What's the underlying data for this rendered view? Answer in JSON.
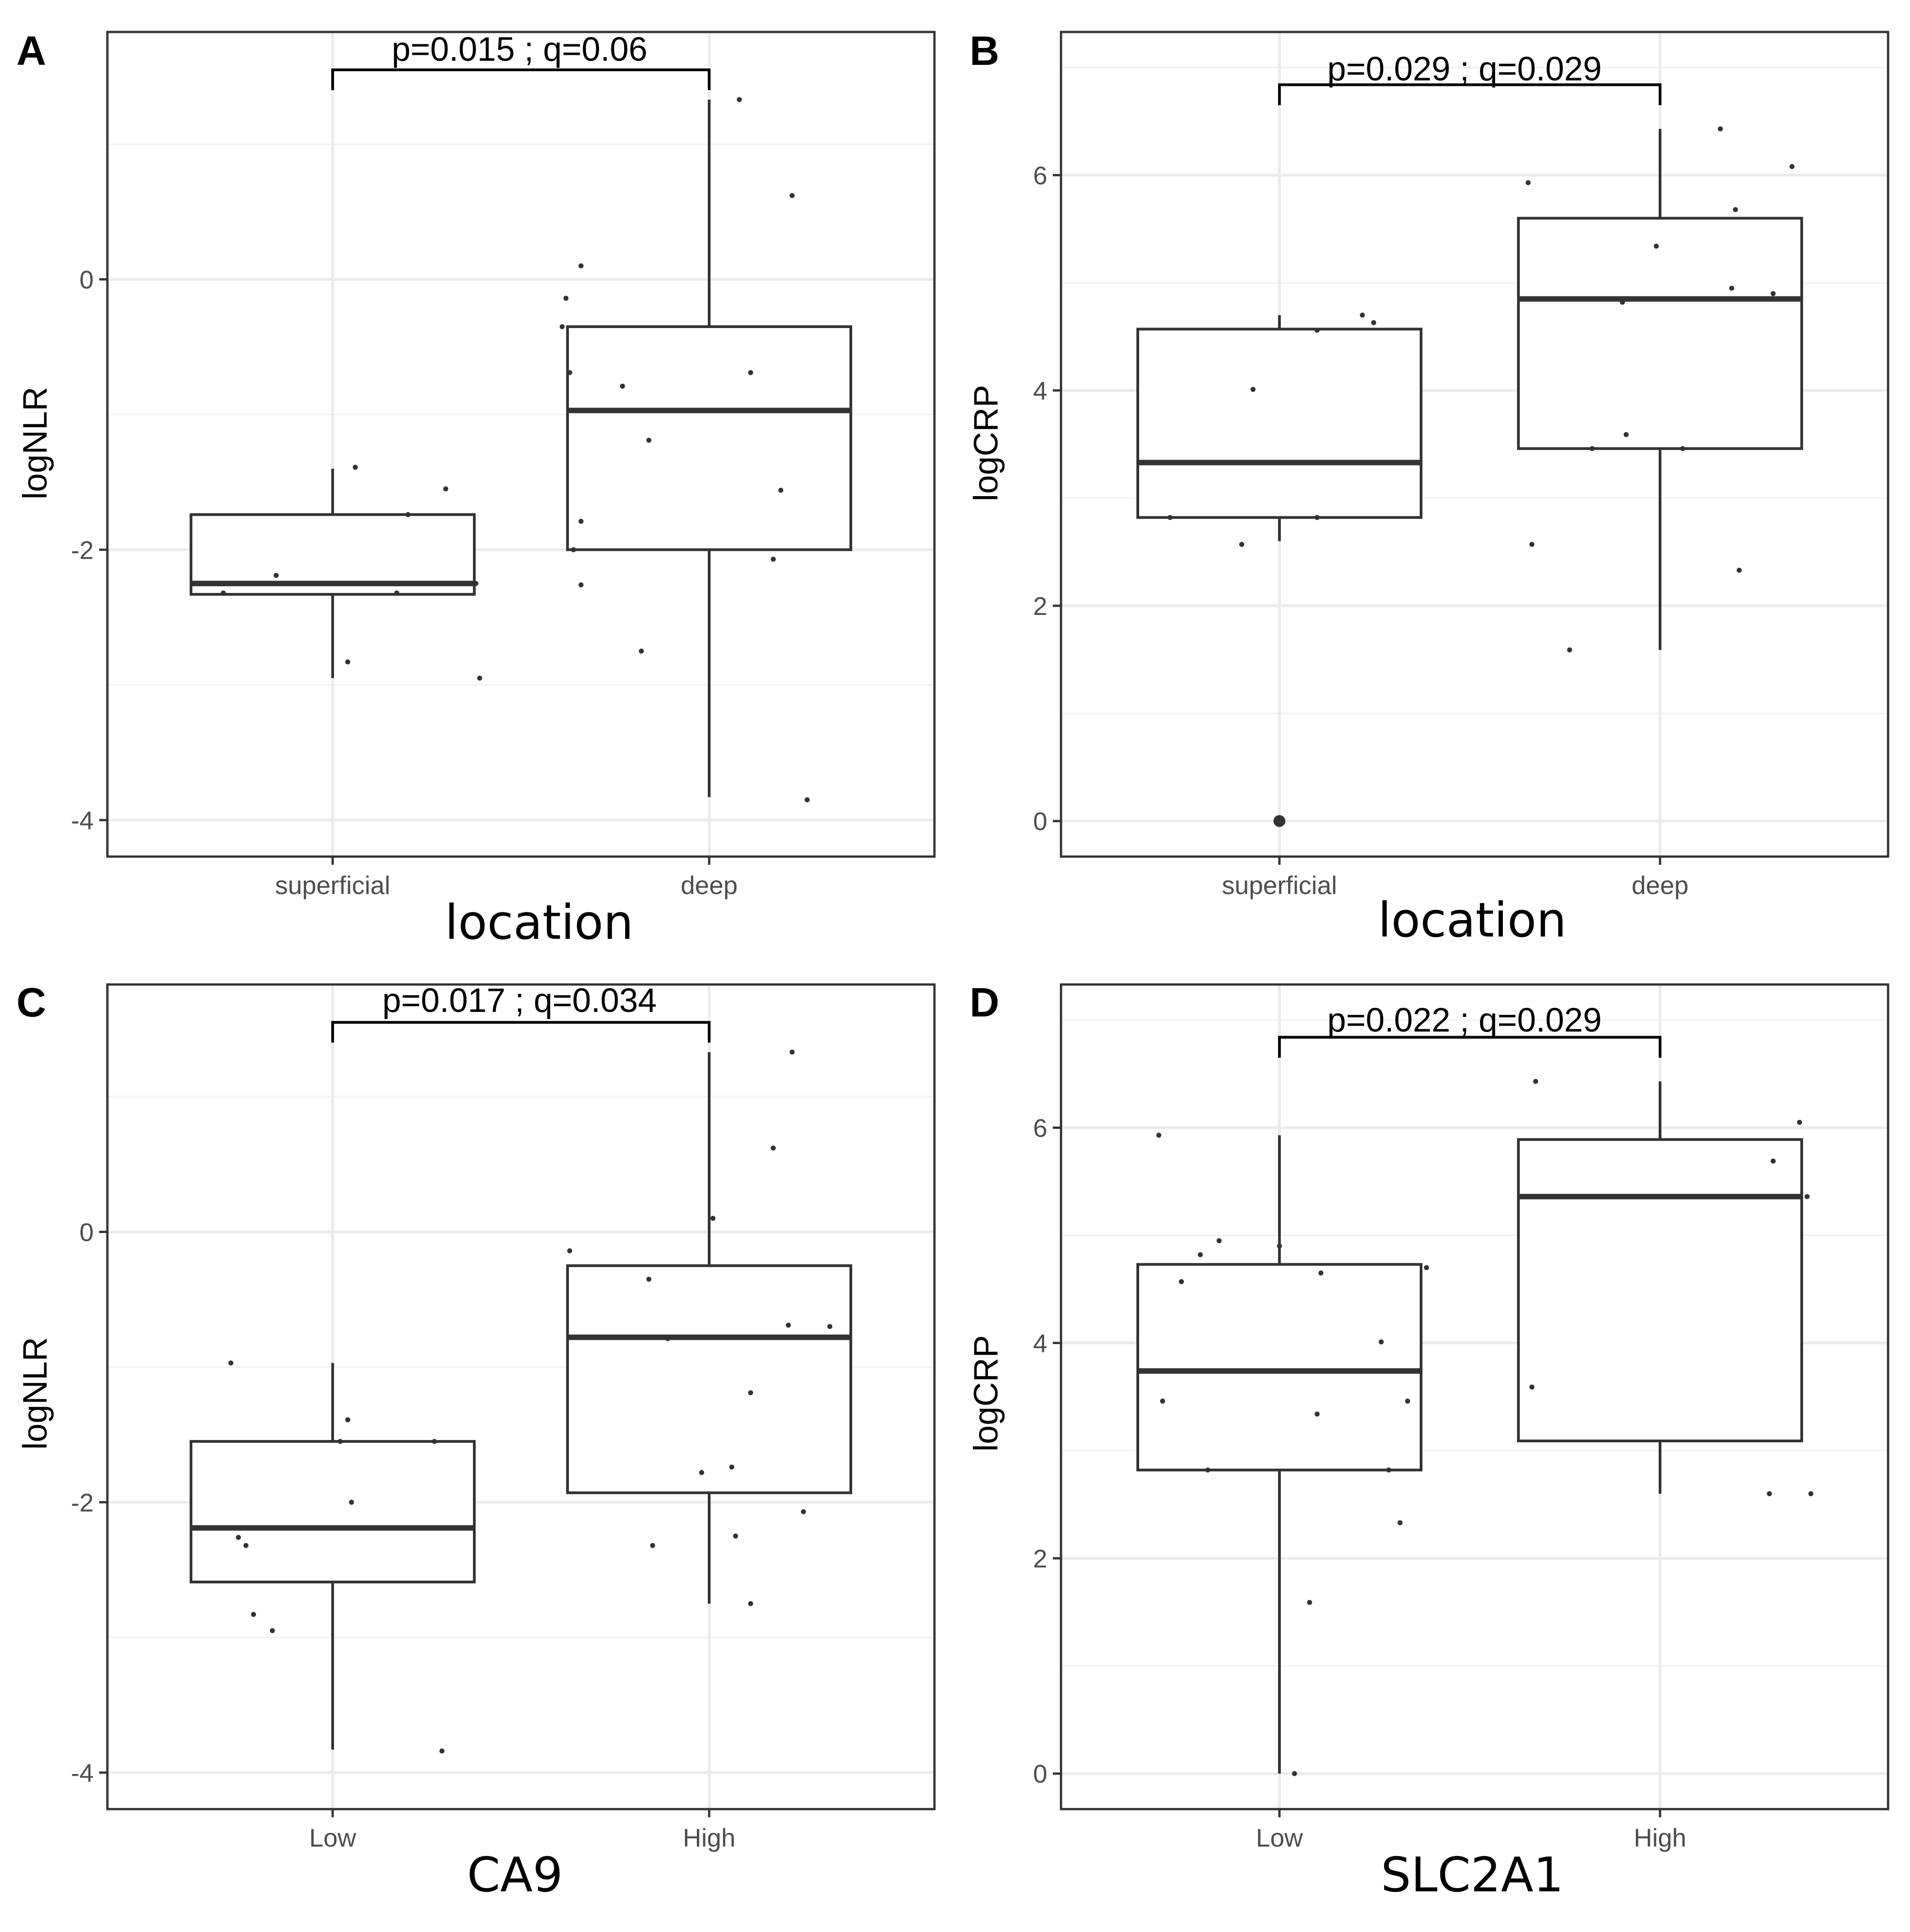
{
  "colors": {
    "box_stroke": "#333333",
    "median": "#333333",
    "point": "#333333",
    "grid_major": "#ebebeb",
    "grid_minor": "#f4f4f4",
    "panel_border": "#333333",
    "background": "#ffffff"
  },
  "chart_data": [
    {
      "id": "A",
      "panel_label": "A",
      "type": "box",
      "xlabel": "location",
      "ylabel": "logNLR",
      "categories": [
        "superficial",
        "deep"
      ],
      "ylim": [
        -4.27,
        1.83
      ],
      "yticks": [
        -4,
        -2,
        0
      ],
      "ytick_labels": [
        "-4",
        "-2",
        "0"
      ],
      "significance": {
        "label": "p=0.015 ; q=0.06",
        "y": 1.55,
        "tip": 1.4
      },
      "boxes": [
        {
          "q1": -2.33,
          "median": -2.25,
          "q3": -1.74,
          "whisker_low": -2.95,
          "whisker_high": -1.4
        },
        {
          "q1": -2.0,
          "median": -0.97,
          "q3": -0.35,
          "whisker_low": -3.83,
          "whisker_high": 1.33
        }
      ],
      "points": [
        {
          "c": 0,
          "dx": -0.29,
          "y": -2.32
        },
        {
          "c": 0,
          "dx": -0.15,
          "y": -2.19
        },
        {
          "c": 0,
          "dx": 0.04,
          "y": -2.83
        },
        {
          "c": 0,
          "dx": 0.06,
          "y": -1.39
        },
        {
          "c": 0,
          "dx": 0.17,
          "y": -2.32
        },
        {
          "c": 0,
          "dx": 0.2,
          "y": -1.74
        },
        {
          "c": 0,
          "dx": 0.3,
          "y": -1.55
        },
        {
          "c": 0,
          "dx": 0.38,
          "y": -2.25
        },
        {
          "c": 0,
          "dx": 0.39,
          "y": -2.95
        },
        {
          "c": 1,
          "dx": -0.39,
          "y": -0.35
        },
        {
          "c": 1,
          "dx": -0.38,
          "y": -0.14
        },
        {
          "c": 1,
          "dx": -0.37,
          "y": -0.69
        },
        {
          "c": 1,
          "dx": -0.36,
          "y": -2.0
        },
        {
          "c": 1,
          "dx": -0.34,
          "y": 0.1
        },
        {
          "c": 1,
          "dx": -0.34,
          "y": -1.79
        },
        {
          "c": 1,
          "dx": -0.34,
          "y": -2.26
        },
        {
          "c": 1,
          "dx": -0.23,
          "y": -0.79
        },
        {
          "c": 1,
          "dx": -0.18,
          "y": -2.75
        },
        {
          "c": 1,
          "dx": -0.16,
          "y": -1.19
        },
        {
          "c": 1,
          "dx": 0.08,
          "y": 1.33
        },
        {
          "c": 1,
          "dx": 0.11,
          "y": -0.69
        },
        {
          "c": 1,
          "dx": 0.17,
          "y": -2.07
        },
        {
          "c": 1,
          "dx": 0.19,
          "y": -1.56
        },
        {
          "c": 1,
          "dx": 0.22,
          "y": 0.62
        },
        {
          "c": 1,
          "dx": 0.26,
          "y": -3.85
        },
        {
          "c": 1,
          "dx": 0.28,
          "y": -0.97
        }
      ],
      "outliers": []
    },
    {
      "id": "B",
      "panel_label": "B",
      "type": "box",
      "xlabel": "location",
      "ylabel": "logCRP",
      "categories": [
        "superficial",
        "deep"
      ],
      "ylim": [
        -0.33,
        7.33
      ],
      "yticks": [
        0,
        2,
        4,
        6
      ],
      "ytick_labels": [
        "0",
        "2",
        "4",
        "6"
      ],
      "significance": {
        "label": "p=0.029 ; q=0.029",
        "y": 6.84,
        "tip": 6.65
      },
      "boxes": [
        {
          "q1": 2.82,
          "median": 3.33,
          "q3": 4.57,
          "whisker_low": 2.6,
          "whisker_high": 4.7
        },
        {
          "q1": 3.46,
          "median": 4.85,
          "q3": 5.6,
          "whisker_low": 1.59,
          "whisker_high": 6.43
        }
      ],
      "points": [
        {
          "c": 0,
          "dx": -0.29,
          "y": 2.82
        },
        {
          "c": 0,
          "dx": -0.1,
          "y": 2.57
        },
        {
          "c": 0,
          "dx": -0.07,
          "y": 4.01
        },
        {
          "c": 0,
          "dx": 0.1,
          "y": 4.56
        },
        {
          "c": 0,
          "dx": 0.1,
          "y": 2.82
        },
        {
          "c": 0,
          "dx": 0.22,
          "y": 4.7
        },
        {
          "c": 0,
          "dx": 0.25,
          "y": 4.63
        },
        {
          "c": 0,
          "dx": 0.25,
          "y": 3.33
        },
        {
          "c": 1,
          "dx": -0.35,
          "y": 5.93
        },
        {
          "c": 1,
          "dx": -0.34,
          "y": 2.57
        },
        {
          "c": 1,
          "dx": -0.24,
          "y": 1.59
        },
        {
          "c": 1,
          "dx": -0.18,
          "y": 3.46
        },
        {
          "c": 1,
          "dx": -0.1,
          "y": 4.82
        },
        {
          "c": 1,
          "dx": -0.09,
          "y": 3.59
        },
        {
          "c": 1,
          "dx": -0.01,
          "y": 5.34
        },
        {
          "c": 1,
          "dx": 0.06,
          "y": 3.46
        },
        {
          "c": 1,
          "dx": 0.16,
          "y": 6.43
        },
        {
          "c": 1,
          "dx": 0.19,
          "y": 4.95
        },
        {
          "c": 1,
          "dx": 0.2,
          "y": 5.68
        },
        {
          "c": 1,
          "dx": 0.21,
          "y": 2.33
        },
        {
          "c": 1,
          "dx": 0.3,
          "y": 4.9
        },
        {
          "c": 1,
          "dx": 0.35,
          "y": 6.08
        }
      ],
      "outliers": [
        {
          "c": 0,
          "y": 0.0
        }
      ]
    },
    {
      "id": "C",
      "panel_label": "C",
      "type": "box",
      "xlabel": "CA9",
      "ylabel": "logNLR",
      "categories": [
        "Low",
        "High"
      ],
      "ylim": [
        -4.27,
        1.83
      ],
      "yticks": [
        -4,
        -2,
        0
      ],
      "ytick_labels": [
        "-4",
        "-2",
        "0"
      ],
      "significance": {
        "label": "p=0.017 ; q=0.034",
        "y": 1.55,
        "tip": 1.4
      },
      "boxes": [
        {
          "q1": -2.59,
          "median": -2.19,
          "q3": -1.55,
          "whisker_low": -3.83,
          "whisker_high": -0.97
        },
        {
          "q1": -1.93,
          "median": -0.78,
          "q3": -0.25,
          "whisker_low": -2.75,
          "whisker_high": 1.33
        }
      ],
      "points": [
        {
          "c": 0,
          "dx": -0.27,
          "y": -0.97
        },
        {
          "c": 0,
          "dx": -0.25,
          "y": -2.26
        },
        {
          "c": 0,
          "dx": -0.23,
          "y": -2.32
        },
        {
          "c": 0,
          "dx": -0.21,
          "y": -2.83
        },
        {
          "c": 0,
          "dx": -0.16,
          "y": -2.95
        },
        {
          "c": 0,
          "dx": 0.02,
          "y": -1.55
        },
        {
          "c": 0,
          "dx": 0.04,
          "y": -1.39
        },
        {
          "c": 0,
          "dx": 0.05,
          "y": -2.0
        },
        {
          "c": 0,
          "dx": 0.27,
          "y": -1.55
        },
        {
          "c": 0,
          "dx": 0.29,
          "y": -3.84
        },
        {
          "c": 1,
          "dx": -0.37,
          "y": -0.14
        },
        {
          "c": 1,
          "dx": -0.16,
          "y": -0.35
        },
        {
          "c": 1,
          "dx": -0.15,
          "y": -2.32
        },
        {
          "c": 1,
          "dx": -0.11,
          "y": -0.79
        },
        {
          "c": 1,
          "dx": -0.02,
          "y": -1.78
        },
        {
          "c": 1,
          "dx": 0.01,
          "y": 0.1
        },
        {
          "c": 1,
          "dx": 0.06,
          "y": -1.74
        },
        {
          "c": 1,
          "dx": 0.07,
          "y": -2.25
        },
        {
          "c": 1,
          "dx": 0.11,
          "y": -1.19
        },
        {
          "c": 1,
          "dx": 0.11,
          "y": -2.75
        },
        {
          "c": 1,
          "dx": 0.17,
          "y": 0.62
        },
        {
          "c": 1,
          "dx": 0.21,
          "y": -0.69
        },
        {
          "c": 1,
          "dx": 0.22,
          "y": 1.33
        },
        {
          "c": 1,
          "dx": 0.25,
          "y": -2.07
        },
        {
          "c": 1,
          "dx": 0.32,
          "y": -0.7
        }
      ],
      "outliers": []
    },
    {
      "id": "D",
      "panel_label": "D",
      "type": "box",
      "xlabel": "SLC2A1",
      "ylabel": "logCRP",
      "categories": [
        "Low",
        "High"
      ],
      "ylim": [
        -0.33,
        7.33
      ],
      "yticks": [
        0,
        2,
        4,
        6
      ],
      "ytick_labels": [
        "0",
        "2",
        "4",
        "6"
      ],
      "significance": {
        "label": "p=0.022 ; q=0.029",
        "y": 6.84,
        "tip": 6.65
      },
      "boxes": [
        {
          "q1": 2.82,
          "median": 3.74,
          "q3": 4.73,
          "whisker_low": 0.0,
          "whisker_high": 5.93
        },
        {
          "q1": 3.09,
          "median": 5.36,
          "q3": 5.89,
          "whisker_low": 2.6,
          "whisker_high": 6.43
        }
      ],
      "points": [
        {
          "c": 0,
          "dx": -0.32,
          "y": 5.93
        },
        {
          "c": 0,
          "dx": -0.31,
          "y": 3.46
        },
        {
          "c": 0,
          "dx": -0.26,
          "y": 4.57
        },
        {
          "c": 0,
          "dx": -0.21,
          "y": 4.82
        },
        {
          "c": 0,
          "dx": -0.19,
          "y": 2.82
        },
        {
          "c": 0,
          "dx": -0.16,
          "y": 4.95
        },
        {
          "c": 0,
          "dx": 0.0,
          "y": 4.9
        },
        {
          "c": 0,
          "dx": 0.04,
          "y": 0.0
        },
        {
          "c": 0,
          "dx": 0.08,
          "y": 1.59
        },
        {
          "c": 0,
          "dx": 0.1,
          "y": 3.34
        },
        {
          "c": 0,
          "dx": 0.11,
          "y": 4.65
        },
        {
          "c": 0,
          "dx": 0.27,
          "y": 4.01
        },
        {
          "c": 0,
          "dx": 0.29,
          "y": 2.82
        },
        {
          "c": 0,
          "dx": 0.32,
          "y": 2.33
        },
        {
          "c": 0,
          "dx": 0.34,
          "y": 3.46
        },
        {
          "c": 0,
          "dx": 0.39,
          "y": 4.7
        },
        {
          "c": 1,
          "dx": -0.34,
          "y": 3.59
        },
        {
          "c": 1,
          "dx": -0.33,
          "y": 6.43
        },
        {
          "c": 1,
          "dx": 0.29,
          "y": 2.6
        },
        {
          "c": 1,
          "dx": 0.3,
          "y": 5.69
        },
        {
          "c": 1,
          "dx": 0.37,
          "y": 6.05
        },
        {
          "c": 1,
          "dx": 0.39,
          "y": 5.36
        },
        {
          "c": 1,
          "dx": 0.4,
          "y": 2.6
        }
      ],
      "outliers": []
    }
  ]
}
